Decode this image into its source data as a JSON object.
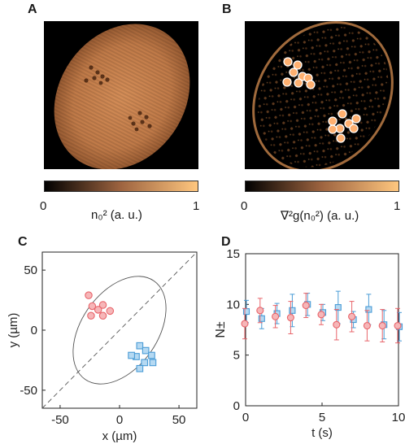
{
  "panels": {
    "a": {
      "label": "A"
    },
    "b": {
      "label": "B"
    },
    "c": {
      "label": "C"
    },
    "d": {
      "label": "D"
    }
  },
  "colorbars": {
    "a": {
      "min": "0",
      "max": "1",
      "label": "n₀² (a. u.)",
      "colormap": "copper"
    },
    "b": {
      "min": "0",
      "max": "1",
      "label": "∇²g(n₀²) (a. u.)",
      "colormap": "copper"
    }
  },
  "colors": {
    "red_marker": "#e8646a",
    "red_fill": "#f6b6b8",
    "blue_marker": "#4a9cd6",
    "blue_fill": "#b5d9f2",
    "copper_dark": "#000000",
    "copper_light": "#ffc77f"
  },
  "chart_data": [
    {
      "panel": "C",
      "type": "scatter",
      "xlabel": "x (µm)",
      "ylabel": "y (µm)",
      "xlim": [
        -65,
        65
      ],
      "ylim": [
        -65,
        65
      ],
      "xticks": [
        "-50",
        "0",
        "50"
      ],
      "yticks": [
        "50",
        "0",
        "-50"
      ],
      "diagonal": "dashed line y = x",
      "ellipse": {
        "center": [
          0,
          0
        ],
        "semi_axes": [
          32,
          50
        ],
        "rotation_deg": 35
      },
      "series": [
        {
          "marker": "circle",
          "color": "red",
          "points": [
            [
              -26,
              29
            ],
            [
              -23,
              20
            ],
            [
              -18,
              17
            ],
            [
              -14,
              12
            ],
            [
              -8,
              16
            ],
            [
              -24,
              12
            ],
            [
              -14,
              21
            ]
          ]
        },
        {
          "marker": "square",
          "color": "blue",
          "points": [
            [
              17,
              -13
            ],
            [
              22,
              -17
            ],
            [
              27,
              -21
            ],
            [
              21,
              -27
            ],
            [
              28,
              -27
            ],
            [
              14,
              -22
            ],
            [
              10,
              -21
            ],
            [
              17,
              -32
            ]
          ]
        }
      ]
    },
    {
      "panel": "D",
      "type": "scatter",
      "xlabel": "t (s)",
      "ylabel": "N±",
      "xlim": [
        0,
        10
      ],
      "ylim": [
        0,
        15
      ],
      "xticks": [
        "0",
        "5",
        "10"
      ],
      "yticks": [
        "0",
        "5",
        "10",
        "15"
      ],
      "x": [
        0,
        1,
        2,
        3,
        4,
        5,
        6,
        7,
        8,
        9,
        10
      ],
      "series": [
        {
          "marker": "circle",
          "color": "red",
          "values": [
            8.1,
            9.4,
            8.8,
            8.7,
            9.9,
            9.0,
            8.0,
            8.8,
            7.9,
            7.9,
            7.9
          ],
          "errors": [
            1.5,
            1.2,
            1.1,
            1.6,
            1.2,
            1.0,
            1.5,
            1.5,
            1.5,
            1.6,
            1.7
          ]
        },
        {
          "marker": "square",
          "color": "blue",
          "values": [
            9.3,
            8.6,
            9.1,
            9.4,
            10.0,
            9.2,
            9.7,
            8.5,
            9.5,
            8.0,
            7.8
          ],
          "errors": [
            1.1,
            1.0,
            1.0,
            1.6,
            1.1,
            0.8,
            1.6,
            0.8,
            1.5,
            1.4,
            1.4
          ]
        }
      ]
    }
  ]
}
